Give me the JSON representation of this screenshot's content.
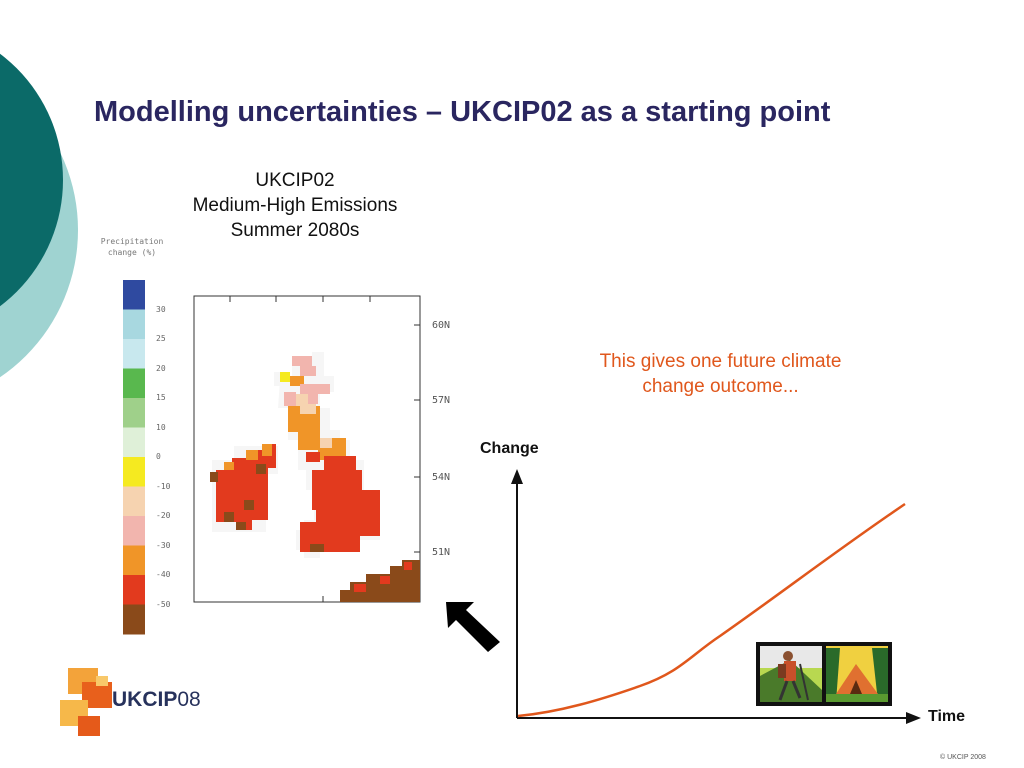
{
  "slide": {
    "title": "Modelling uncertainties – UKCIP02 as a starting point",
    "copyright": "© UKCIP 2008"
  },
  "map": {
    "title_lines": [
      "UKCIP02",
      "Medium-High Emissions",
      "Summer 2080s"
    ],
    "legend_title_lines": [
      "Precipitation",
      "change (%)"
    ],
    "scale_labels": [
      "30",
      "25",
      "20",
      "15",
      "10",
      "0",
      "-10",
      "-20",
      "-30",
      "-40",
      "-50"
    ],
    "scale_colors": [
      "#2f4aa0",
      "#a8d8e0",
      "#c8e8ee",
      "#59b84e",
      "#9fd08a",
      "#dff0d8",
      "#f5ea20",
      "#f6d3b0",
      "#f2b5ae",
      "#f09528",
      "#e23a1e",
      "#8a4a1a"
    ],
    "latitude_labels": [
      "60N",
      "57N",
      "54N",
      "51N"
    ]
  },
  "graph": {
    "note_lines": [
      "This gives one future climate",
      "change outcome..."
    ],
    "y_label": "Change",
    "x_label": "Time"
  },
  "logo": {
    "bold": "UKCIP",
    "light": "08"
  },
  "colors": {
    "teal": "#0b6a68",
    "teal_light": "#9fd3d1",
    "title": "#2a2660",
    "accent": "#e0571c"
  }
}
